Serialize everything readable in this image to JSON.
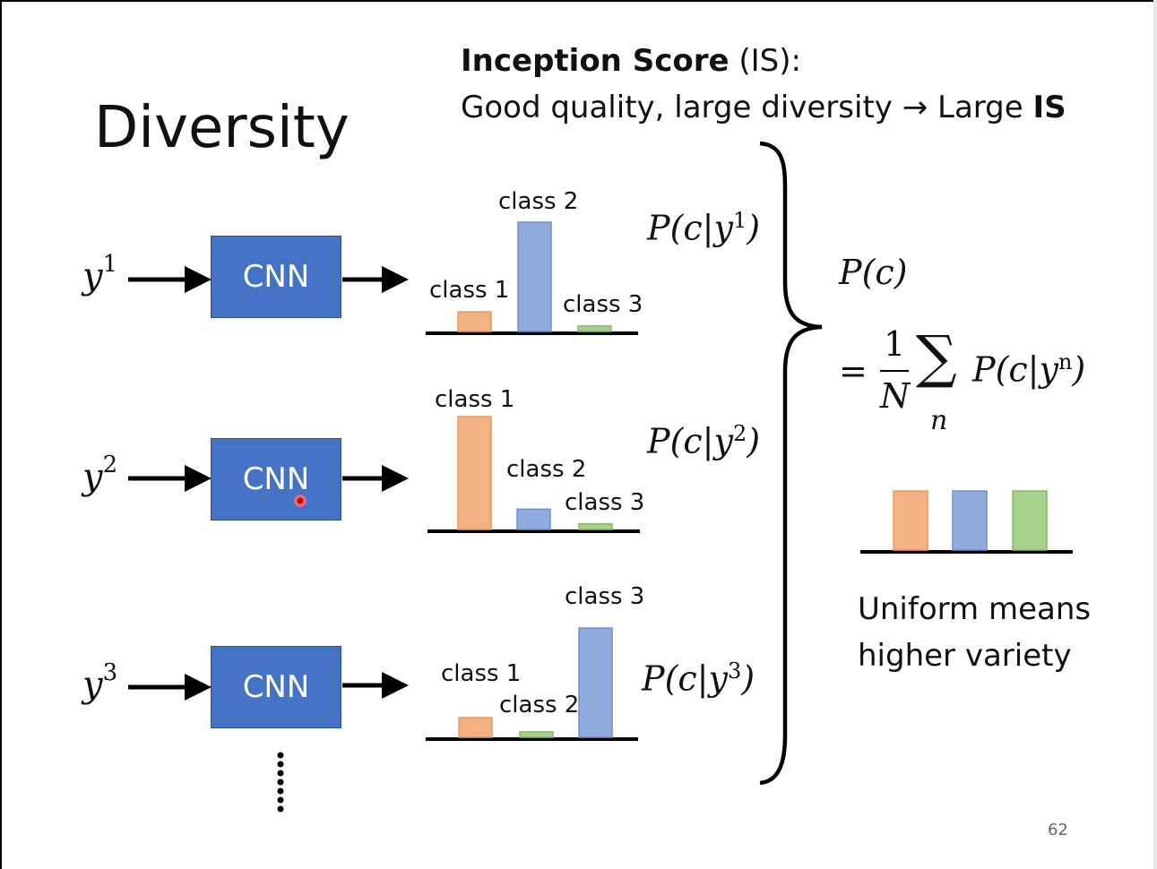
{
  "slide": {
    "title": "Diversity",
    "heading_bold": "Inception Score",
    "heading_rest": " (IS):",
    "subheading_text": "Good quality, large diversity → Large ",
    "subheading_bold": "IS",
    "page_number": "62"
  },
  "rows": [
    {
      "input_base": "y",
      "input_sup": "1",
      "cnn_label": "CNN",
      "prob_base": "P(c|y",
      "prob_sup": "1",
      "prob_close": ")",
      "bars": [
        {
          "label": "class 1",
          "value": 0.18,
          "color": "#f4b183"
        },
        {
          "label": "class 2",
          "value": 1.0,
          "color": "#8faadc"
        },
        {
          "label": "class 3",
          "value": 0.05,
          "color": "#a9d18e"
        }
      ]
    },
    {
      "input_base": "y",
      "input_sup": "2",
      "cnn_label": "CNN",
      "prob_base": "P(c|y",
      "prob_sup": "2",
      "prob_close": ")",
      "bars": [
        {
          "label": "class 1",
          "value": 1.0,
          "color": "#f4b183"
        },
        {
          "label": "class 2",
          "value": 0.18,
          "color": "#8faadc"
        },
        {
          "label": "class 3",
          "value": 0.05,
          "color": "#a9d18e"
        }
      ]
    },
    {
      "input_base": "y",
      "input_sup": "3",
      "cnn_label": "CNN",
      "prob_base": "P(c|y",
      "prob_sup": "3",
      "prob_close": ")",
      "bars": [
        {
          "label": "class 1",
          "value": 0.18,
          "color": "#f4b183"
        },
        {
          "label": "class 2",
          "value": 0.05,
          "color": "#a9d18e"
        },
        {
          "label": "class 3",
          "value": 1.0,
          "color": "#8faadc"
        }
      ]
    }
  ],
  "marginal": {
    "pc": "P(c)",
    "eq": "=",
    "frac_num": "1",
    "frac_den": "N",
    "sum_symbol": "∑",
    "sum_index": "n",
    "term_base": "P(c|y",
    "term_sup": "n",
    "term_close": ")",
    "bars": [
      {
        "value": 1.0,
        "color": "#f4b183"
      },
      {
        "value": 1.0,
        "color": "#8faadc"
      },
      {
        "value": 1.0,
        "color": "#a9d18e"
      }
    ]
  },
  "note": {
    "line1": "Uniform means",
    "line2": "higher variety"
  },
  "colors": {
    "cnn_fill": "#4472c4",
    "orange": "#f4b183",
    "blue": "#8faadc",
    "green": "#a9d18e"
  }
}
